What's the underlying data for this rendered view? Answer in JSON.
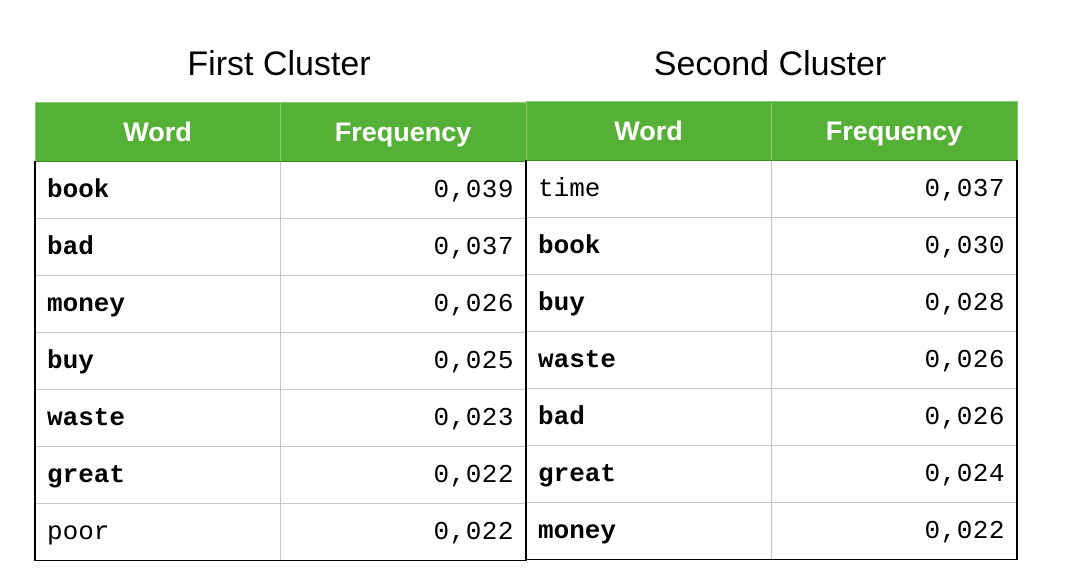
{
  "clusters": [
    {
      "title": "First Cluster",
      "headers": {
        "word": "Word",
        "frequency": "Frequency"
      },
      "rows": [
        {
          "word": "book",
          "frequency": "0,039",
          "bold": true
        },
        {
          "word": "bad",
          "frequency": "0,037",
          "bold": true
        },
        {
          "word": "money",
          "frequency": "0,026",
          "bold": true
        },
        {
          "word": "buy",
          "frequency": "0,025",
          "bold": true
        },
        {
          "word": "waste",
          "frequency": "0,023",
          "bold": true
        },
        {
          "word": "great",
          "frequency": "0,022",
          "bold": true
        },
        {
          "word": "poor",
          "frequency": "0,022",
          "bold": false
        }
      ]
    },
    {
      "title": "Second Cluster",
      "headers": {
        "word": "Word",
        "frequency": "Frequency"
      },
      "rows": [
        {
          "word": "time",
          "frequency": "0,037",
          "bold": false
        },
        {
          "word": "book",
          "frequency": "0,030",
          "bold": true
        },
        {
          "word": "buy",
          "frequency": "0,028",
          "bold": true
        },
        {
          "word": "waste",
          "frequency": "0,026",
          "bold": true
        },
        {
          "word": "bad",
          "frequency": "0,026",
          "bold": true
        },
        {
          "word": "great",
          "frequency": "0,024",
          "bold": true
        },
        {
          "word": "money",
          "frequency": "0,022",
          "bold": true
        }
      ]
    }
  ],
  "colors": {
    "header_background": "#55b136",
    "header_text": "#ffffff",
    "cell_text": "#000000"
  }
}
